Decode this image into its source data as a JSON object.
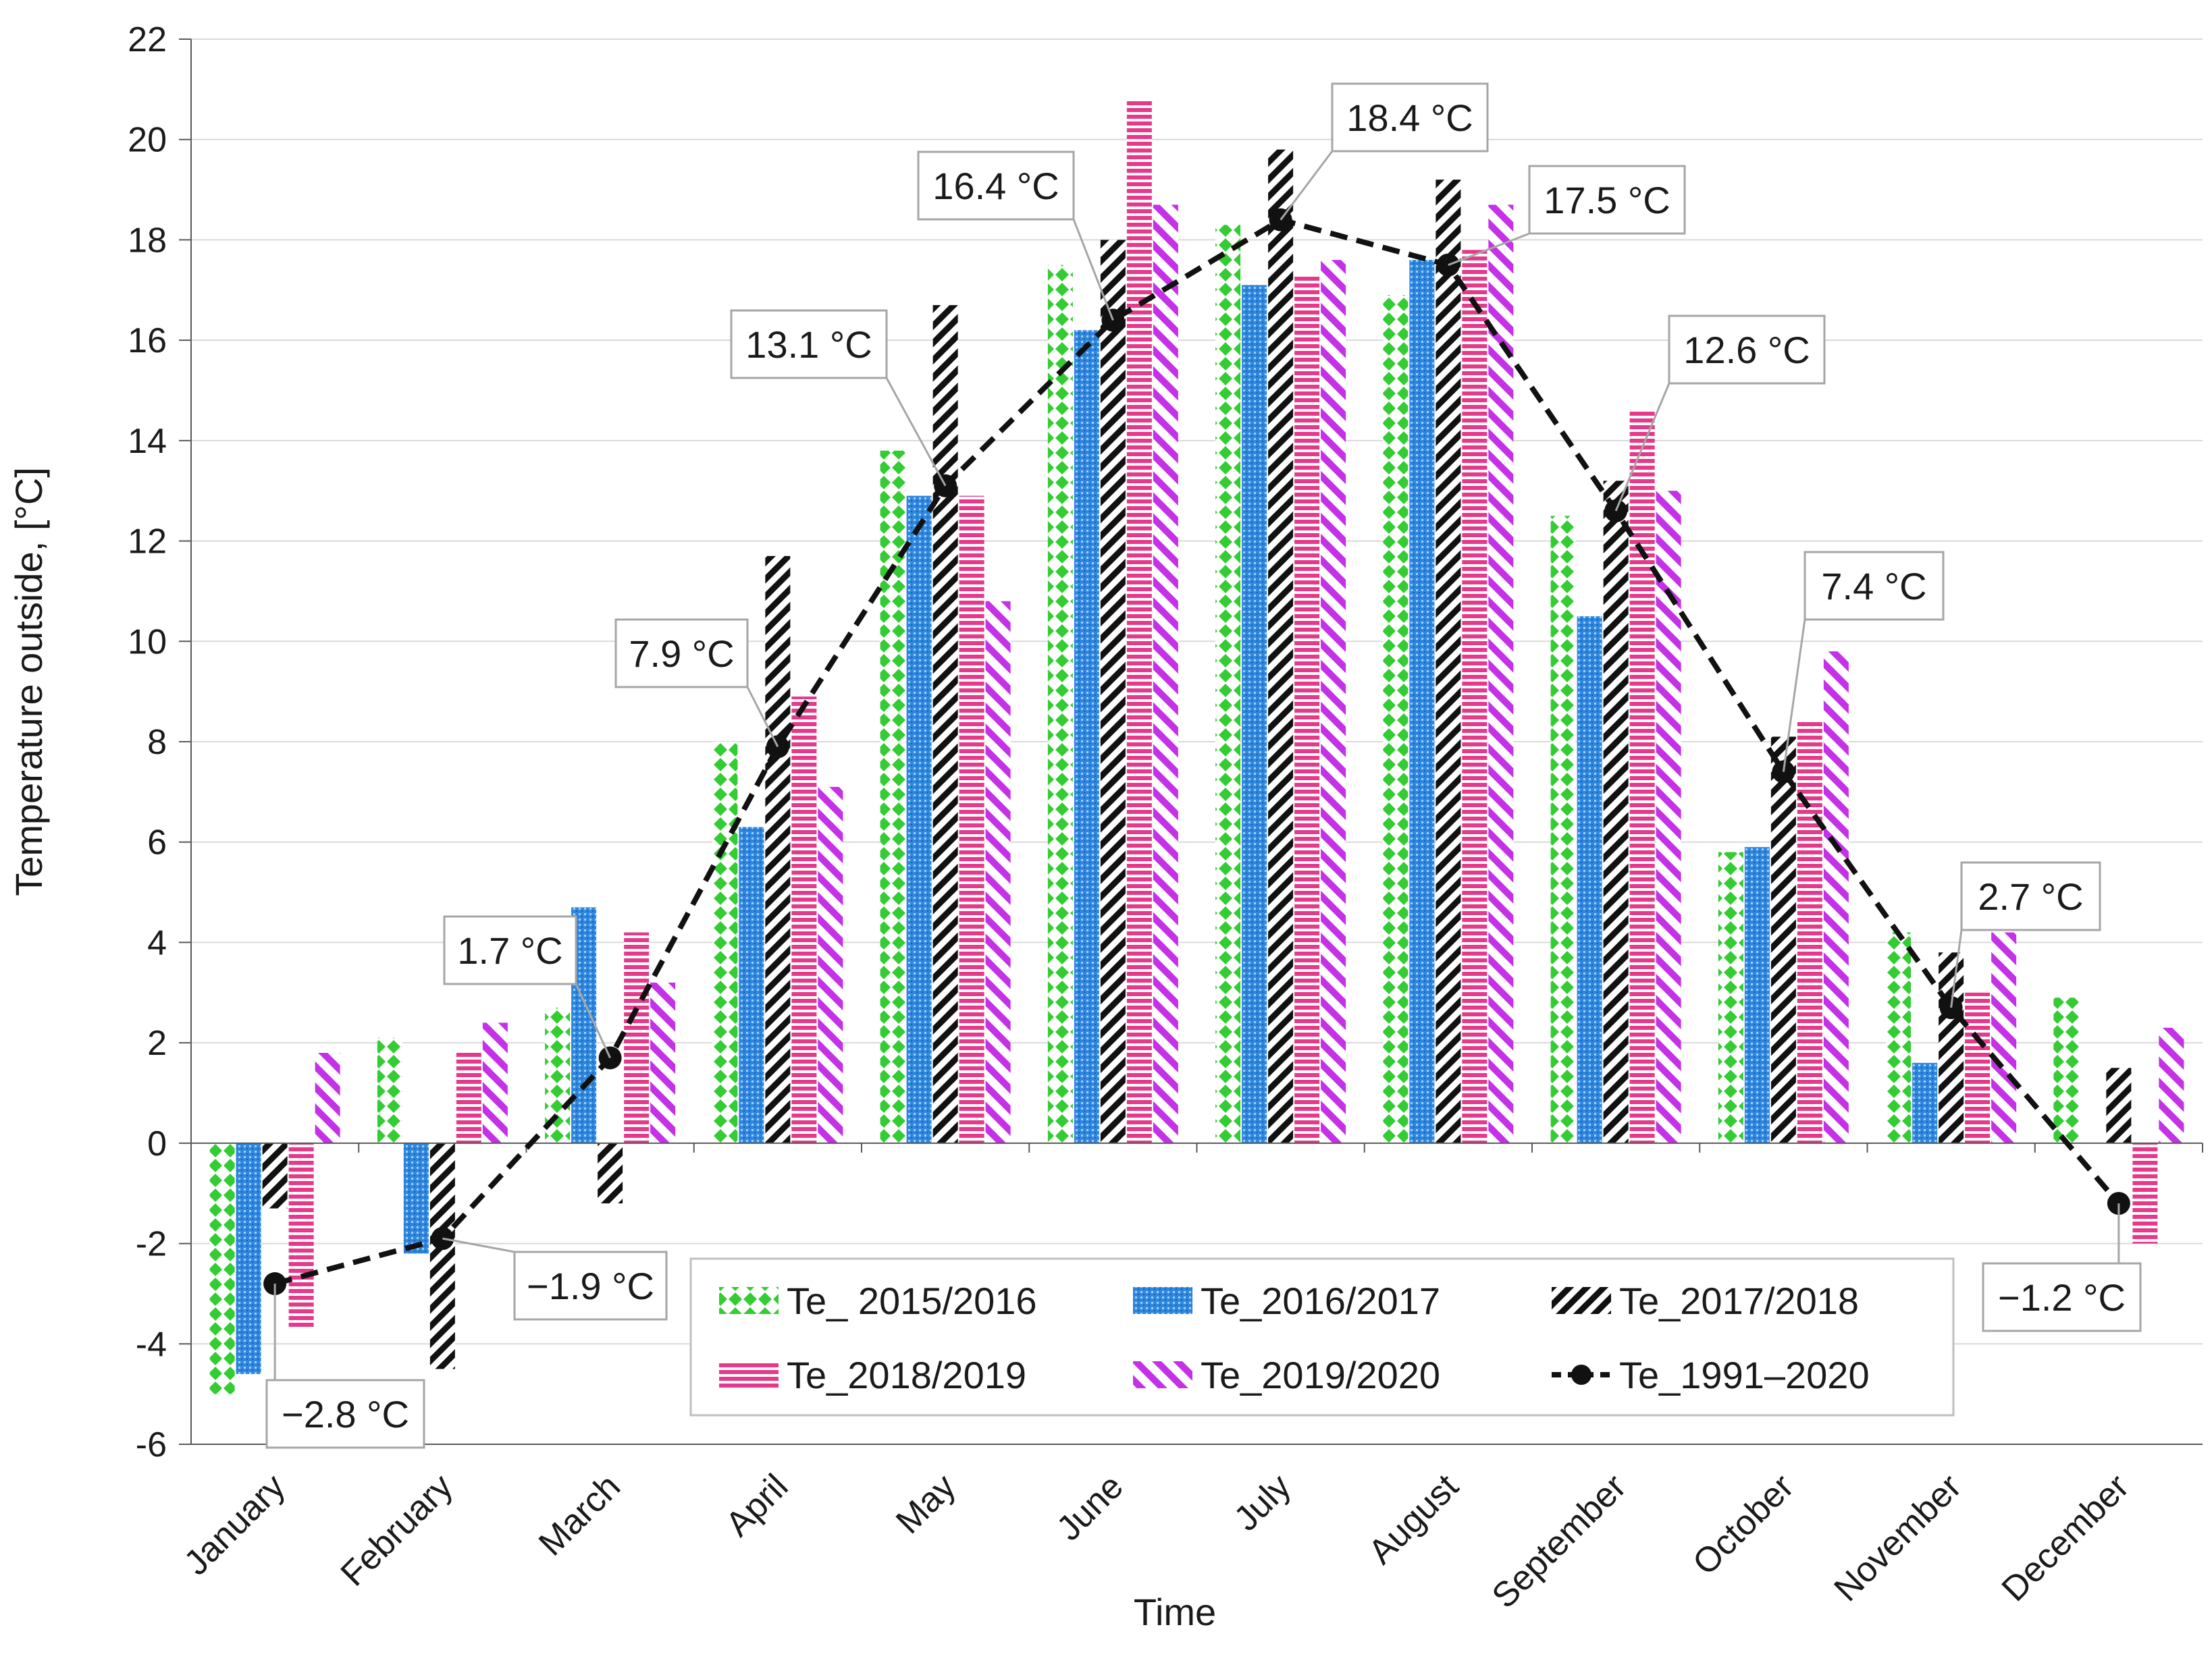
{
  "chart_data": {
    "type": "bar",
    "title": "",
    "xlabel": "Time",
    "ylabel": "Temperature outside, [°C]",
    "ylim": [
      -6,
      22
    ],
    "yticks": [
      -6,
      -4,
      -2,
      0,
      2,
      4,
      6,
      8,
      10,
      12,
      14,
      16,
      18,
      20,
      22
    ],
    "grid": "horizontal",
    "legend_position": "lower-center",
    "categories": [
      "January",
      "February",
      "March",
      "April",
      "May",
      "June",
      "July",
      "August",
      "September",
      "October",
      "November",
      "December"
    ],
    "series": [
      {
        "name": "Te_ 2015/2016",
        "kind": "bar",
        "color": "#33cc33",
        "pattern": "diamonds",
        "values": [
          -5.0,
          2.1,
          2.7,
          8.0,
          13.8,
          17.5,
          18.3,
          16.9,
          12.5,
          5.8,
          4.2,
          2.9
        ]
      },
      {
        "name": "Te_2016/2017",
        "kind": "bar",
        "color": "#2e86de",
        "pattern": "dots",
        "values": [
          -4.6,
          -2.2,
          4.7,
          6.3,
          12.9,
          16.2,
          17.1,
          17.6,
          10.5,
          5.9,
          1.6,
          0.0
        ]
      },
      {
        "name": "Te_2017/2018",
        "kind": "bar",
        "color": "#111111",
        "pattern": "diagonal",
        "values": [
          -1.3,
          -4.5,
          -1.2,
          11.7,
          16.7,
          18.0,
          19.8,
          19.2,
          13.2,
          8.1,
          3.8,
          1.5
        ]
      },
      {
        "name": "Te_2018/2019",
        "kind": "bar",
        "color": "#e6398a",
        "pattern": "horizontal",
        "values": [
          -3.7,
          1.8,
          4.2,
          8.9,
          12.9,
          20.8,
          17.3,
          17.8,
          14.6,
          8.4,
          3.0,
          -2.0
        ]
      },
      {
        "name": "Te_2019/2020",
        "kind": "bar",
        "color": "#c431e6",
        "pattern": "diagonal-wide",
        "values": [
          1.8,
          2.4,
          3.2,
          7.1,
          10.8,
          18.7,
          17.6,
          18.7,
          13.0,
          9.8,
          4.2,
          2.3
        ]
      },
      {
        "name": "Te_1991–2020",
        "kind": "line",
        "color": "#111111",
        "pattern": "dashed",
        "values": [
          -2.8,
          -1.9,
          1.7,
          7.9,
          13.1,
          16.4,
          18.4,
          17.5,
          12.6,
          7.4,
          2.7,
          -1.2
        ]
      }
    ],
    "annotations": [
      {
        "label": "−2.8 °C",
        "category": "January"
      },
      {
        "label": "−1.9 °C",
        "category": "February"
      },
      {
        "label": "1.7 °C",
        "category": "March"
      },
      {
        "label": "7.9 °C",
        "category": "April"
      },
      {
        "label": "13.1 °C",
        "category": "May"
      },
      {
        "label": "16.4 °C",
        "category": "June"
      },
      {
        "label": "18.4 °C",
        "category": "July"
      },
      {
        "label": "17.5 °C",
        "category": "August"
      },
      {
        "label": "12.6 °C",
        "category": "September"
      },
      {
        "label": "7.4 °C",
        "category": "October"
      },
      {
        "label": "2.7 °C",
        "category": "November"
      },
      {
        "label": "−1.2 °C",
        "category": "December"
      }
    ]
  }
}
